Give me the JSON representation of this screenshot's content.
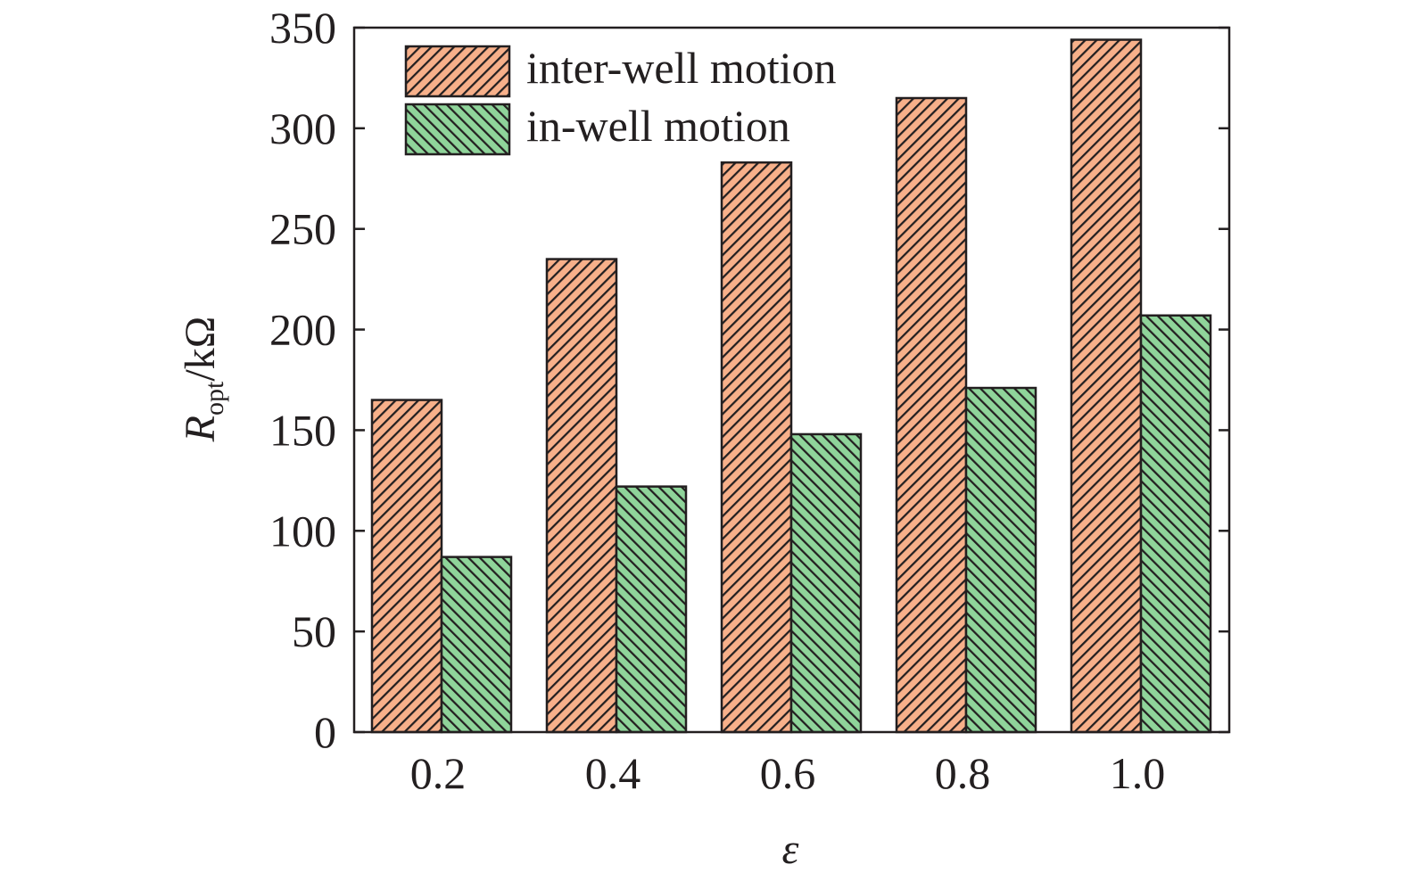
{
  "chart_data": {
    "type": "bar",
    "title": "",
    "xlabel": "ε",
    "ylabel": {
      "symbol": "R",
      "subscript": "opt",
      "unit": "/kΩ"
    },
    "categories": [
      "0.2",
      "0.4",
      "0.6",
      "0.8",
      "1.0"
    ],
    "series": [
      {
        "name": "inter-well motion",
        "values": [
          165,
          235,
          283,
          315,
          344
        ],
        "color": "#f7b08a",
        "hatch": "#231f20"
      },
      {
        "name": "in-well motion",
        "values": [
          87,
          122,
          148,
          171,
          207
        ],
        "color": "#8fd49a",
        "hatch": "#231f20"
      }
    ],
    "ylim": [
      0,
      350
    ],
    "yticks": [
      0,
      50,
      100,
      150,
      200,
      250,
      300,
      350
    ],
    "grid": false,
    "legend_position": "top-left"
  }
}
